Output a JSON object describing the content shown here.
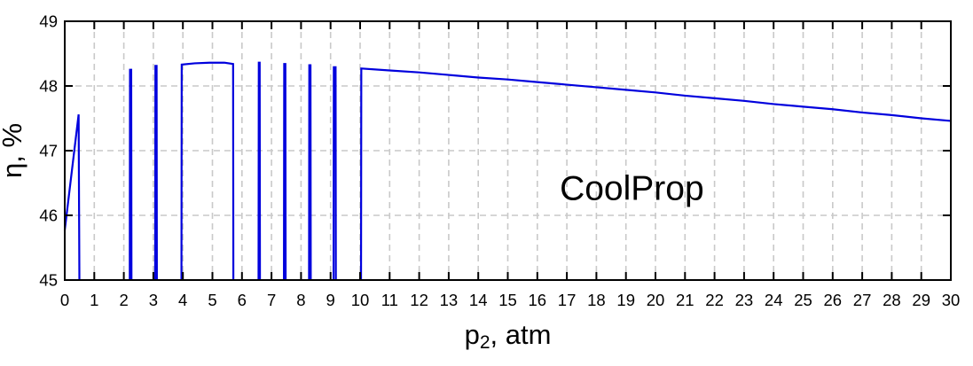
{
  "figure": {
    "background": "#ffffff"
  },
  "chart_data": {
    "type": "line",
    "title": "",
    "xlabel": {
      "base": "p",
      "sub": "2",
      "rest": ", atm",
      "full": "p2, atm"
    },
    "ylabel": "η, %",
    "xlim": [
      0,
      30
    ],
    "ylim": [
      45,
      49
    ],
    "x_ticks": [
      0,
      1,
      2,
      3,
      4,
      5,
      6,
      7,
      8,
      9,
      10,
      11,
      12,
      13,
      14,
      15,
      16,
      17,
      18,
      19,
      20,
      21,
      22,
      23,
      24,
      25,
      26,
      27,
      28,
      29,
      30
    ],
    "x_tick_labels": [
      "0",
      "1",
      "2",
      "3",
      "4",
      "5",
      "6",
      "7",
      "8",
      "9",
      "10",
      "11",
      "12",
      "13",
      "14",
      "15",
      "16",
      "17",
      "18",
      "19",
      "20",
      "21",
      "22",
      "23",
      "24",
      "25",
      "26",
      "27",
      "28",
      "29",
      "30"
    ],
    "y_ticks": [
      45,
      46,
      47,
      48,
      49
    ],
    "y_tick_labels": [
      "45",
      "46",
      "47",
      "48",
      "49"
    ],
    "grid": true,
    "grid_color": "#c9c9c9",
    "axis_color": "#000000",
    "annotation": {
      "text": "CoolProp",
      "x": 19.2,
      "y": 46.42
    },
    "series": [
      {
        "name": "eta-vs-p2",
        "color": "#0000dd",
        "points": [
          [
            0.0,
            45.77
          ],
          [
            0.47,
            47.56
          ],
          [
            0.5,
            44.6
          ],
          [
            2.2,
            44.6
          ],
          [
            2.21,
            48.25
          ],
          [
            2.25,
            48.25
          ],
          [
            2.26,
            44.6
          ],
          [
            3.06,
            44.6
          ],
          [
            3.07,
            48.31
          ],
          [
            3.11,
            48.31
          ],
          [
            3.12,
            44.6
          ],
          [
            3.95,
            44.6
          ],
          [
            3.96,
            48.33
          ],
          [
            4.4,
            48.35
          ],
          [
            4.9,
            48.36
          ],
          [
            5.4,
            48.36
          ],
          [
            5.7,
            48.34
          ],
          [
            5.71,
            44.6
          ],
          [
            6.56,
            44.6
          ],
          [
            6.57,
            48.36
          ],
          [
            6.6,
            48.36
          ],
          [
            6.61,
            44.6
          ],
          [
            7.42,
            44.6
          ],
          [
            7.43,
            48.34
          ],
          [
            7.47,
            48.34
          ],
          [
            7.48,
            44.6
          ],
          [
            8.27,
            44.6
          ],
          [
            8.28,
            48.32
          ],
          [
            8.32,
            48.32
          ],
          [
            8.33,
            44.6
          ],
          [
            9.1,
            44.6
          ],
          [
            9.11,
            48.29
          ],
          [
            9.17,
            48.29
          ],
          [
            9.18,
            44.6
          ],
          [
            10.03,
            44.6
          ],
          [
            10.04,
            48.27
          ],
          [
            11,
            48.24
          ],
          [
            12,
            48.21
          ],
          [
            13,
            48.17
          ],
          [
            14,
            48.13
          ],
          [
            15,
            48.1
          ],
          [
            16,
            48.06
          ],
          [
            17,
            48.02
          ],
          [
            18,
            47.98
          ],
          [
            19,
            47.94
          ],
          [
            20,
            47.9
          ],
          [
            21,
            47.85
          ],
          [
            22,
            47.81
          ],
          [
            23,
            47.77
          ],
          [
            24,
            47.72
          ],
          [
            25,
            47.68
          ],
          [
            26,
            47.64
          ],
          [
            27,
            47.59
          ],
          [
            28,
            47.55
          ],
          [
            29,
            47.5
          ],
          [
            30,
            47.46
          ]
        ]
      }
    ]
  }
}
